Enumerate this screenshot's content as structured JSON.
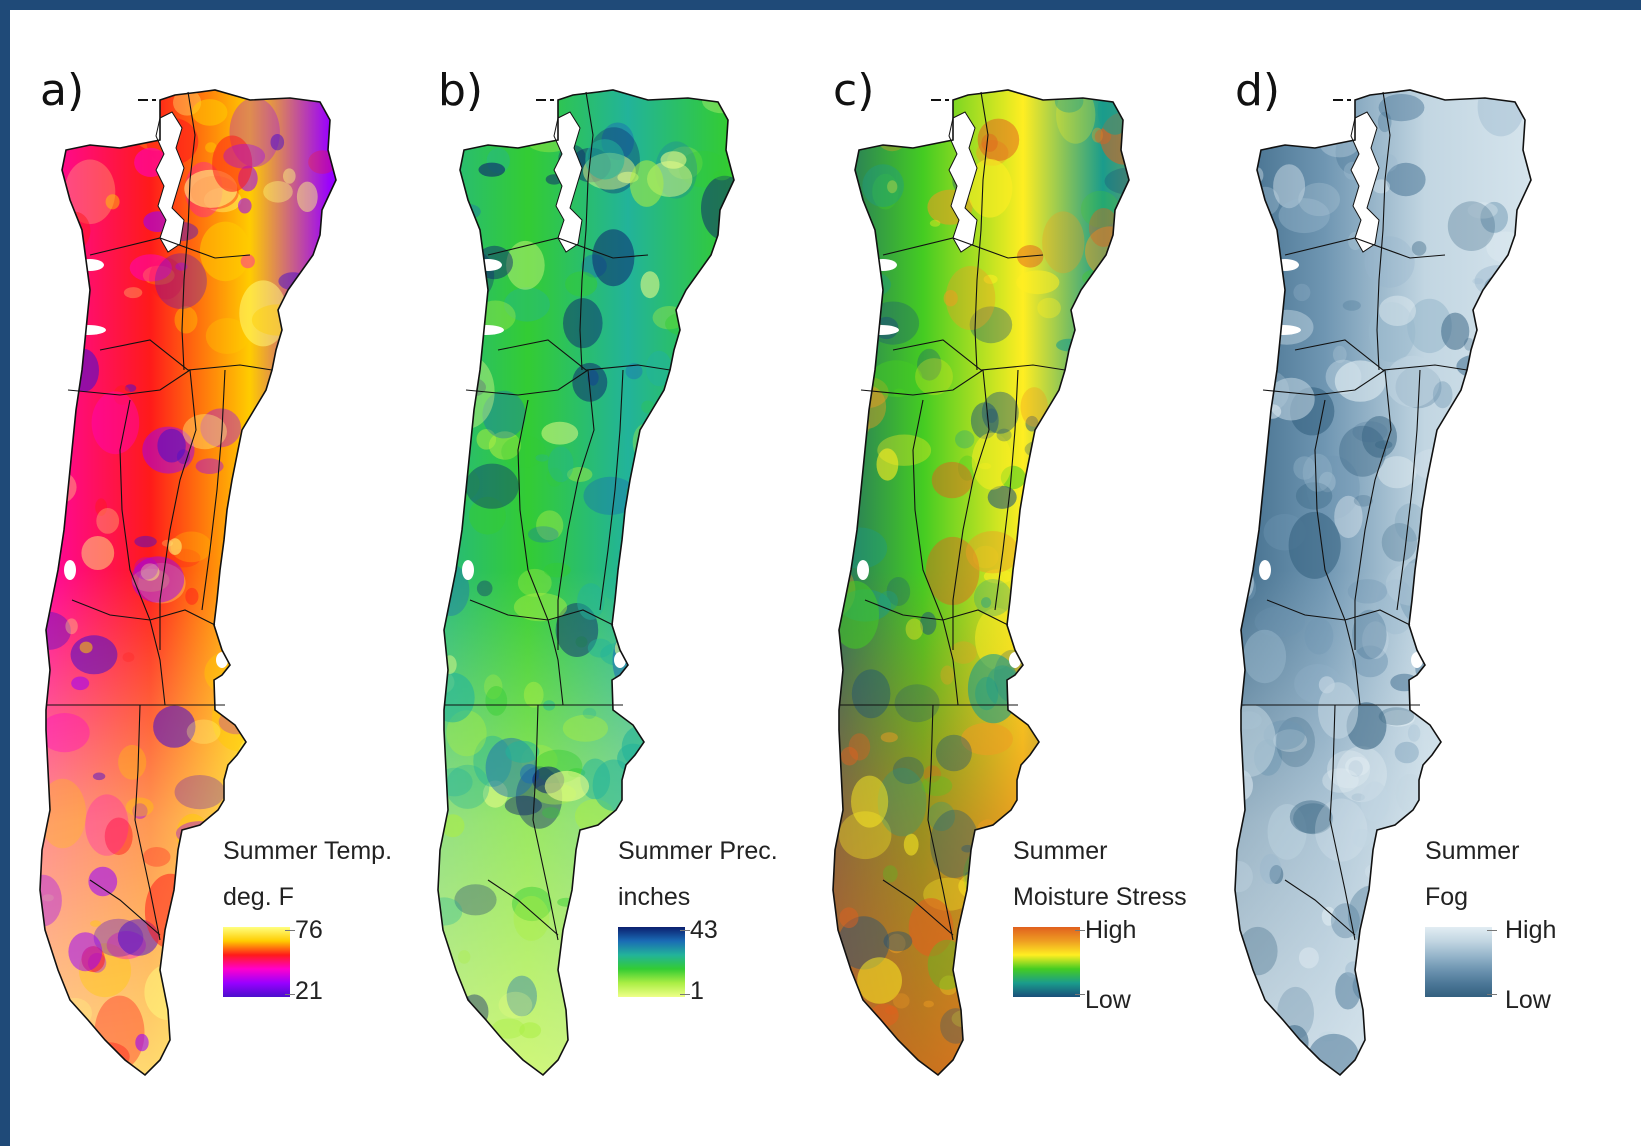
{
  "panels": [
    {
      "label": "a)",
      "legend_title_1": "Summer Temp.",
      "legend_title_2": "deg. F",
      "legend_top": "76",
      "legend_bottom": "21",
      "palette": [
        "#ffff80",
        "#ffcc00",
        "#ff1a1a",
        "#ff00cc",
        "#9900ff",
        "#4b0fcc"
      ]
    },
    {
      "label": "b)",
      "legend_title_1": "Summer Prec.",
      "legend_title_2": "inches",
      "legend_top": "43",
      "legend_bottom": "1",
      "palette": [
        "#0b1f6e",
        "#1a6bb5",
        "#22b39a",
        "#33cc33",
        "#aaee44",
        "#eeff88"
      ]
    },
    {
      "label": "c)",
      "legend_title_1": "Summer",
      "legend_title_2": "Moisture Stress",
      "legend_top": "High",
      "legend_bottom": "Low",
      "palette": [
        "#e0601e",
        "#ee9d22",
        "#ffee22",
        "#44cc22",
        "#1a9c8c",
        "#1a4f7a"
      ]
    },
    {
      "label": "d)",
      "legend_title_1": "Summer",
      "legend_title_2": "Fog",
      "legend_top": "High",
      "legend_bottom": "Low",
      "palette": [
        "#e2edf3",
        "#c2d6e2",
        "#98b7cc",
        "#6f96b2",
        "#4d7898",
        "#33607f"
      ]
    }
  ]
}
